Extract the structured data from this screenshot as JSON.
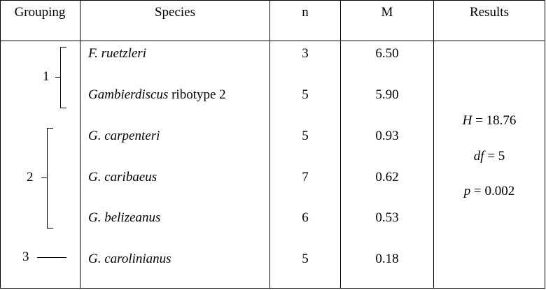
{
  "headers": {
    "grouping": "Grouping",
    "species": "Species",
    "n": "n",
    "m": "M",
    "results": "Results"
  },
  "groups": [
    {
      "label": "1"
    },
    {
      "label": "2"
    },
    {
      "label": "3"
    }
  ],
  "rows": [
    {
      "species_italic": "F. ruetzleri",
      "species_rest": "",
      "n": "3",
      "m": "6.50"
    },
    {
      "species_italic": "Gambierdiscus",
      "species_rest": " ribotype 2",
      "n": "5",
      "m": "5.90"
    },
    {
      "species_italic": "G. carpenteri",
      "species_rest": "",
      "n": "5",
      "m": "0.93"
    },
    {
      "species_italic": "G. caribaeus",
      "species_rest": "",
      "n": "7",
      "m": "0.62"
    },
    {
      "species_italic": "G. belizeanus",
      "species_rest": "",
      "n": "6",
      "m": "0.53"
    },
    {
      "species_italic": "G. carolinianus",
      "species_rest": "",
      "n": "5",
      "m": "0.18"
    }
  ],
  "results": {
    "h_symbol": "H",
    "h_value": " = 18.76",
    "df_symbol": "df",
    "df_value": " = 5",
    "p_symbol": "p",
    "p_value": " = 0.002"
  }
}
